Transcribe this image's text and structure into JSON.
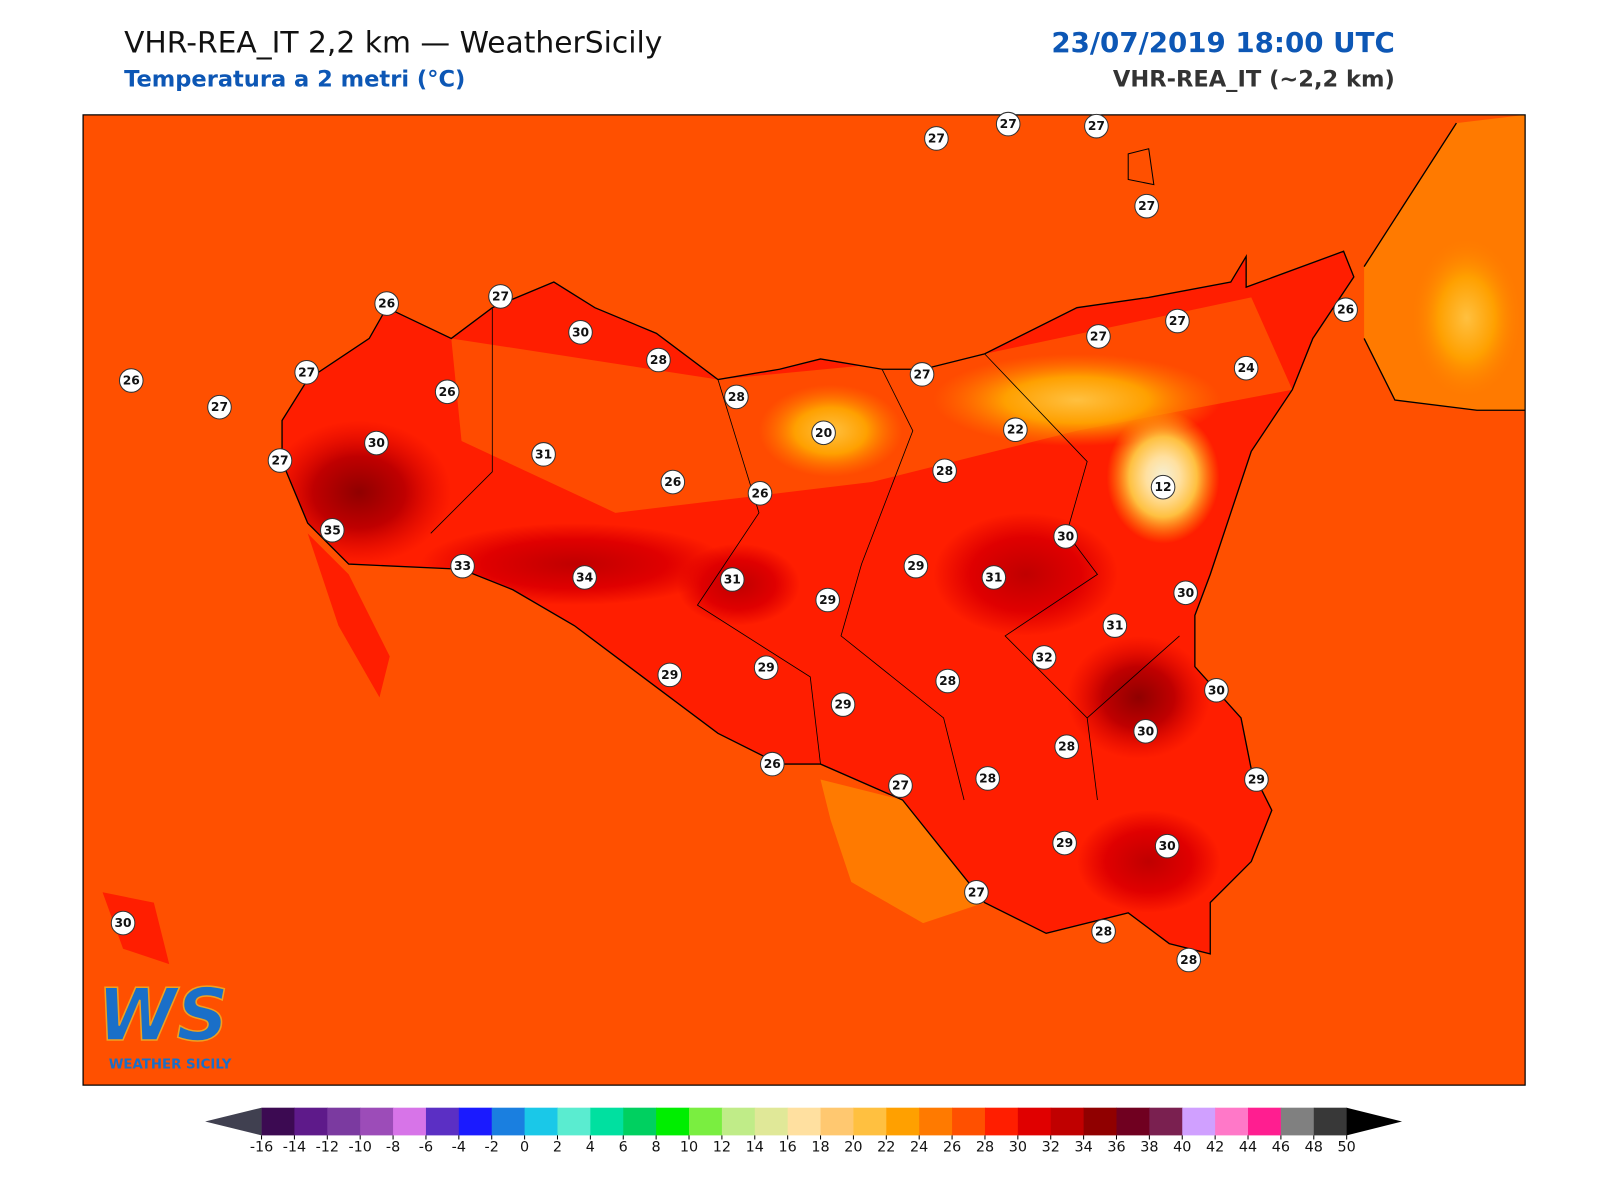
{
  "header": {
    "title": "VHR-REA_IT 2,2 km — WeatherSicily",
    "subtitle": "Temperatura a 2 metri (°C)",
    "datetime": "23/07/2019 18:00 UTC",
    "model": "VHR-REA_IT (~2,2 km)"
  },
  "stations": [
    27,
    27,
    27,
    27,
    26,
    27,
    30,
    28,
    28,
    27,
    26,
    27,
    26,
    27,
    30,
    31,
    27,
    20,
    22,
    27,
    27,
    26,
    24,
    12,
    28,
    26,
    26,
    35,
    33,
    34,
    31,
    29,
    29,
    31,
    30,
    30,
    31,
    32,
    29,
    29,
    28,
    29,
    30,
    30,
    28,
    26,
    27,
    28,
    29,
    29,
    30,
    27,
    28,
    28,
    30
  ],
  "colorbar": {
    "ticks": [
      -16,
      -14,
      -12,
      -10,
      -8,
      -6,
      -4,
      -2,
      0,
      2,
      4,
      6,
      8,
      10,
      12,
      14,
      16,
      18,
      20,
      22,
      24,
      26,
      28,
      30,
      32,
      34,
      36,
      38,
      40,
      42,
      44,
      46,
      48,
      50
    ],
    "colors": [
      "#3c0a52",
      "#5e1a8a",
      "#7b3aa0",
      "#9c4cb8",
      "#d774e8",
      "#5b2fc4",
      "#1a1aff",
      "#1a7fe0",
      "#1ac8e8",
      "#5aecd0",
      "#00e0a0",
      "#00d060",
      "#00ee00",
      "#7aee40",
      "#c0ec88",
      "#e0e898",
      "#ffe0a0",
      "#ffc870",
      "#ffc040",
      "#ffa000",
      "#ff7a00",
      "#ff5000",
      "#ff1e00",
      "#e00000",
      "#c00000",
      "#900000",
      "#700020",
      "#7a2050",
      "#d0a0ff",
      "#ff78c8",
      "#ff1e90",
      "#808080",
      "#383838"
    ],
    "under_color": "#404050",
    "over_color": "#000000"
  },
  "logo": {
    "text": "WS",
    "subtitle": "WEATHER SICILY"
  }
}
